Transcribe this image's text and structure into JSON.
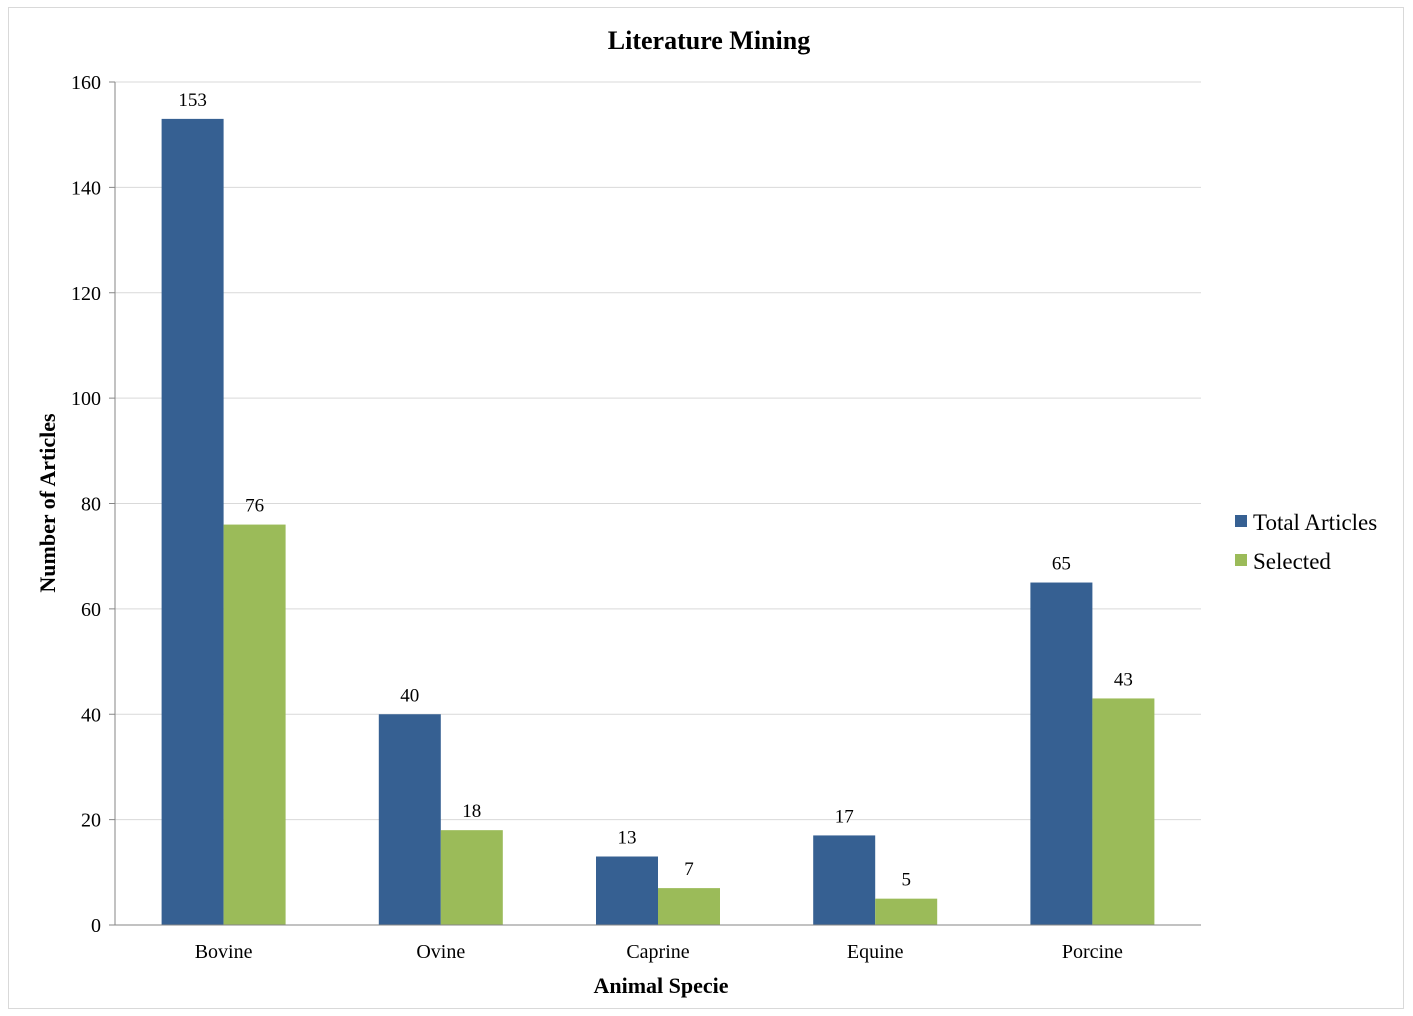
{
  "chart_data": {
    "type": "bar",
    "title": "Literature Mining",
    "xlabel": "Animal Specie",
    "ylabel": "Number of Articles",
    "categories": [
      "Bovine",
      "Ovine",
      "Caprine",
      "Equine",
      "Porcine"
    ],
    "series": [
      {
        "name": "Total Articles",
        "values": [
          153,
          40,
          13,
          17,
          65
        ],
        "color": "#366092"
      },
      {
        "name": "Selected",
        "values": [
          76,
          18,
          7,
          5,
          43
        ],
        "color": "#9bbb59"
      }
    ],
    "ylim": [
      0,
      160
    ],
    "yticks": [
      0,
      20,
      40,
      60,
      80,
      100,
      120,
      140,
      160
    ],
    "grid": true,
    "legend_position": "right",
    "data_labels": true
  }
}
